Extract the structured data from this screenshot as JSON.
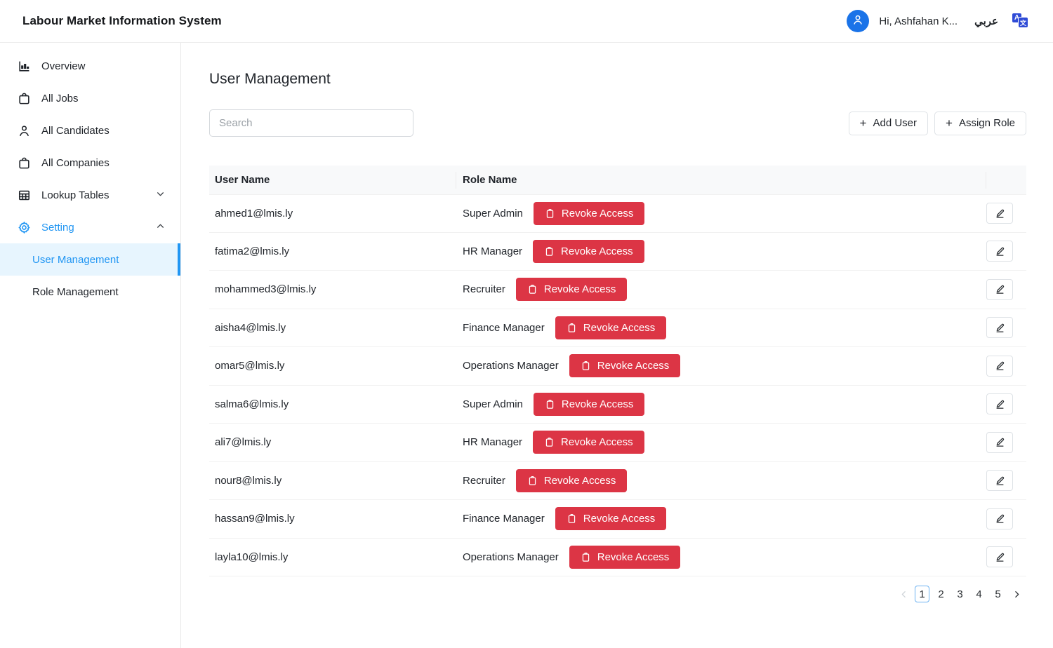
{
  "header": {
    "app_title": "Labour Market Information System",
    "greeting": "Hi, Ashfahan K...",
    "language_label": "عربي",
    "translate_glyph_a": "A",
    "translate_glyph_b": "文"
  },
  "sidebar": {
    "items": [
      {
        "label": "Overview",
        "icon": "chart-icon"
      },
      {
        "label": "All Jobs",
        "icon": "briefcase-icon"
      },
      {
        "label": "All Candidates",
        "icon": "person-icon"
      },
      {
        "label": "All Companies",
        "icon": "briefcase-icon"
      },
      {
        "label": "Lookup Tables",
        "icon": "table-icon",
        "chevron": "down"
      },
      {
        "label": "Setting",
        "icon": "gear-icon",
        "chevron": "up"
      }
    ],
    "sub_items": [
      {
        "label": "User Management",
        "active": true
      },
      {
        "label": "Role Management",
        "active": false
      }
    ]
  },
  "main": {
    "page_title": "User Management",
    "search_placeholder": "Search",
    "add_user_label": "Add User",
    "assign_role_label": "Assign Role",
    "plus_glyph": "+",
    "table": {
      "columns": {
        "user": "User Name",
        "role": "Role Name"
      },
      "revoke_label": "Revoke Access",
      "rows": [
        {
          "user": "ahmed1@lmis.ly",
          "role": "Super Admin"
        },
        {
          "user": "fatima2@lmis.ly",
          "role": "HR Manager"
        },
        {
          "user": "mohammed3@lmis.ly",
          "role": "Recruiter"
        },
        {
          "user": "aisha4@lmis.ly",
          "role": "Finance Manager"
        },
        {
          "user": "omar5@lmis.ly",
          "role": "Operations Manager"
        },
        {
          "user": "salma6@lmis.ly",
          "role": "Super Admin"
        },
        {
          "user": "ali7@lmis.ly",
          "role": "HR Manager"
        },
        {
          "user": "nour8@lmis.ly",
          "role": "Recruiter"
        },
        {
          "user": "hassan9@lmis.ly",
          "role": "Finance Manager"
        },
        {
          "user": "layla10@lmis.ly",
          "role": "Operations Manager"
        }
      ]
    },
    "pagination": {
      "pages": [
        "1",
        "2",
        "3",
        "4",
        "5"
      ],
      "active_page": "1"
    }
  },
  "colors": {
    "danger_red": "#dc3545",
    "accent_blue": "#2196f3",
    "avatar_blue": "#1a73e8",
    "active_item_bg": "#e7f5fe",
    "pagination_active_border": "#6db3f2"
  }
}
